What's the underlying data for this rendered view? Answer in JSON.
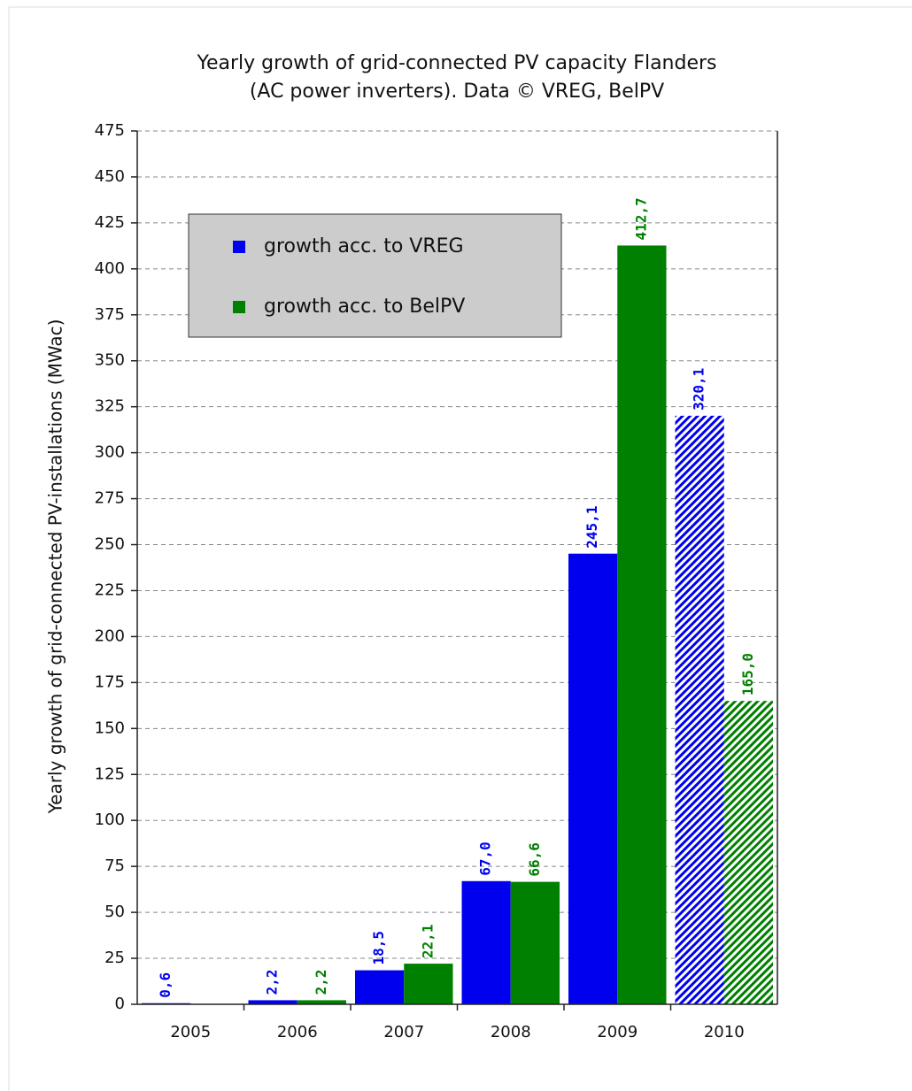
{
  "chart_data": {
    "type": "bar",
    "title": [
      "Yearly growth of grid-connected PV capacity Flanders",
      "(AC power inverters). Data © VREG, BelPV"
    ],
    "y_label": "Yearly growth of grid-connected PV-installations (MWac)",
    "categories": [
      "2005",
      "2006",
      "2007",
      "2008",
      "2009",
      "2010"
    ],
    "series": [
      {
        "name": "growth acc. to VREG",
        "color": "#0000ee",
        "values": [
          0.6,
          2.2,
          18.5,
          67.0,
          245.1,
          320.1
        ],
        "value_labels": [
          "0,6",
          "2,2",
          "18,5",
          "67,0",
          "245,1",
          "320,1"
        ],
        "hatched": [
          false,
          false,
          false,
          false,
          false,
          true
        ]
      },
      {
        "name": "growth acc. to BelPV",
        "color": "#008000",
        "values": [
          null,
          2.2,
          22.1,
          66.6,
          412.7,
          165.0
        ],
        "value_labels": [
          null,
          "2,2",
          "22,1",
          "66,6",
          "412,7",
          "165,0"
        ],
        "hatched": [
          false,
          false,
          false,
          false,
          false,
          true
        ]
      }
    ],
    "ylim": [
      0,
      475
    ],
    "yticks": [
      0,
      25,
      50,
      75,
      100,
      125,
      150,
      175,
      200,
      225,
      250,
      275,
      300,
      325,
      350,
      375,
      400,
      425,
      450,
      475
    ],
    "grid": true,
    "legend": "upper left"
  }
}
